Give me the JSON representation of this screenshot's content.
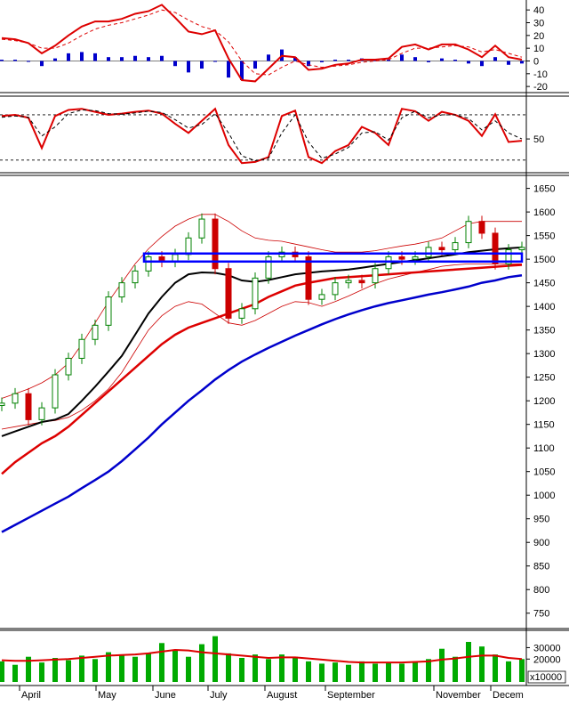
{
  "colors": {
    "background": "#ffffff",
    "panel_border": "#000000",
    "candle_up": "#008000",
    "candle_down": "#cc0000",
    "ma_black": "#000000",
    "ma_red": "#dd0000",
    "ma_blue": "#0000cc",
    "bollinger": "#cc0000",
    "highlight_box": "#0000ff",
    "macd_hist": "#0000cc",
    "volume_bar": "#00aa00",
    "volume_ma": "#dd0000"
  },
  "x_axis": {
    "months": [
      "April",
      "May",
      "June",
      "July",
      "August",
      "September",
      "November",
      "Decem"
    ]
  },
  "chart_data": [
    {
      "type": "line",
      "panel": "macd",
      "y_ticks": [
        40,
        30,
        20,
        10,
        0,
        -10,
        -20
      ],
      "ylim": [
        -22,
        45
      ],
      "x": [
        0,
        15,
        30,
        45,
        60,
        75,
        90,
        105,
        120,
        135,
        150,
        165,
        180,
        195,
        210,
        225,
        240,
        255,
        270,
        285,
        300,
        315,
        330,
        345,
        360,
        375,
        390,
        405,
        420,
        435,
        450,
        465,
        480,
        495,
        510,
        525,
        540,
        555,
        570,
        585
      ],
      "series": [
        {
          "values": [
            18,
            17,
            14,
            6,
            12,
            20,
            27,
            31,
            31,
            33,
            37,
            39,
            44,
            34,
            23,
            21,
            24,
            2,
            -15,
            -16,
            -6,
            4,
            3,
            -7,
            -6,
            -3,
            -2,
            1,
            1,
            2,
            11,
            13,
            9,
            13,
            13,
            9,
            3,
            12,
            3,
            1
          ]
        },
        {
          "values": [
            17,
            16,
            14,
            10,
            10,
            14,
            20,
            25,
            28,
            30,
            33,
            36,
            40,
            38,
            32,
            27,
            24,
            15,
            0,
            -10,
            -11,
            -5,
            0,
            -3,
            -5,
            -4,
            -3,
            -1,
            0,
            1,
            6,
            10,
            10,
            11,
            12,
            11,
            7,
            9,
            6,
            3
          ]
        }
      ],
      "histogram": [
        1,
        1,
        0,
        -4,
        2,
        6,
        7,
        6,
        3,
        3,
        4,
        3,
        4,
        -4,
        -9,
        -6,
        0,
        -13,
        -15,
        -6,
        5,
        9,
        3,
        -4,
        -1,
        1,
        1,
        2,
        1,
        1,
        5,
        3,
        -1,
        2,
        1,
        -2,
        -4,
        3,
        -3,
        -2
      ]
    },
    {
      "type": "line",
      "panel": "oscillator",
      "y_ticks": [
        50
      ],
      "ylim": [
        0,
        115
      ],
      "reference_lines": [
        90,
        15
      ],
      "x": [
        0,
        15,
        30,
        45,
        60,
        75,
        90,
        105,
        120,
        135,
        150,
        165,
        180,
        195,
        210,
        225,
        240,
        255,
        270,
        285,
        300,
        315,
        330,
        345,
        360,
        375,
        390,
        405,
        420,
        435,
        450,
        465,
        480,
        495,
        510,
        525,
        540,
        555,
        570,
        585
      ],
      "series": [
        {
          "values": [
            88,
            90,
            85,
            35,
            88,
            98,
            100,
            95,
            90,
            92,
            95,
            97,
            92,
            75,
            60,
            80,
            100,
            40,
            10,
            12,
            20,
            88,
            97,
            20,
            10,
            30,
            40,
            70,
            60,
            40,
            100,
            96,
            80,
            95,
            90,
            80,
            55,
            91,
            45,
            47
          ]
        },
        {
          "values": [
            86,
            88,
            86,
            55,
            70,
            92,
            98,
            97,
            92,
            91,
            93,
            96,
            94,
            82,
            68,
            74,
            92,
            60,
            22,
            14,
            18,
            60,
            90,
            45,
            18,
            25,
            36,
            60,
            62,
            48,
            85,
            96,
            85,
            90,
            90,
            84,
            65,
            80,
            60,
            50
          ]
        }
      ]
    },
    {
      "type": "candlestick",
      "panel": "price",
      "y_ticks": [
        1650,
        1600,
        1550,
        1500,
        1450,
        1400,
        1350,
        1300,
        1250,
        1200,
        1150,
        1100,
        1050,
        1000,
        950,
        900,
        850,
        800,
        750
      ],
      "ylim": [
        725,
        1670
      ],
      "x": [
        0,
        15,
        30,
        45,
        60,
        75,
        90,
        105,
        120,
        135,
        150,
        165,
        180,
        195,
        210,
        225,
        240,
        255,
        270,
        285,
        300,
        315,
        330,
        345,
        360,
        375,
        390,
        405,
        420,
        435,
        450,
        465,
        480,
        495,
        510,
        525,
        540,
        555,
        570,
        585
      ],
      "close": [
        1195,
        1215,
        1160,
        1185,
        1255,
        1290,
        1330,
        1360,
        1420,
        1450,
        1475,
        1505,
        1495,
        1510,
        1545,
        1585,
        1480,
        1375,
        1395,
        1460,
        1505,
        1515,
        1505,
        1415,
        1425,
        1450,
        1455,
        1450,
        1480,
        1505,
        1500,
        1505,
        1525,
        1520,
        1535,
        1580,
        1555,
        1490,
        1520,
        1525
      ],
      "ma_black": [
        1125,
        1135,
        1145,
        1155,
        1160,
        1172,
        1200,
        1230,
        1262,
        1295,
        1340,
        1385,
        1420,
        1450,
        1468,
        1472,
        1471,
        1466,
        1455,
        1452,
        1456,
        1462,
        1468,
        1471,
        1474,
        1476,
        1478,
        1482,
        1486,
        1490,
        1494,
        1498,
        1502,
        1506,
        1510,
        1515,
        1518,
        1521,
        1523,
        1525
      ],
      "ma_red": [
        1045,
        1070,
        1090,
        1110,
        1125,
        1145,
        1170,
        1195,
        1220,
        1245,
        1270,
        1295,
        1320,
        1340,
        1355,
        1365,
        1375,
        1385,
        1395,
        1405,
        1420,
        1432,
        1444,
        1450,
        1455,
        1460,
        1462,
        1464,
        1466,
        1468,
        1470,
        1472,
        1474,
        1476,
        1478,
        1480,
        1482,
        1484,
        1486,
        1488
      ],
      "ma_blue": [
        922,
        937,
        952,
        967,
        982,
        997,
        1015,
        1032,
        1050,
        1072,
        1097,
        1122,
        1150,
        1175,
        1200,
        1222,
        1245,
        1265,
        1283,
        1298,
        1312,
        1325,
        1338,
        1350,
        1362,
        1373,
        1383,
        1392,
        1400,
        1407,
        1413,
        1419,
        1425,
        1430,
        1436,
        1442,
        1450,
        1455,
        1462,
        1466
      ],
      "bb_upper": [
        1205,
        1215,
        1225,
        1238,
        1255,
        1280,
        1320,
        1365,
        1410,
        1450,
        1490,
        1522,
        1548,
        1570,
        1585,
        1595,
        1595,
        1580,
        1560,
        1545,
        1540,
        1538,
        1532,
        1526,
        1520,
        1515,
        1515,
        1515,
        1518,
        1523,
        1528,
        1532,
        1538,
        1545,
        1560,
        1575,
        1580,
        1580,
        1580,
        1580
      ],
      "bb_lower": [
        1140,
        1145,
        1150,
        1155,
        1158,
        1165,
        1180,
        1200,
        1225,
        1260,
        1305,
        1350,
        1380,
        1400,
        1410,
        1405,
        1385,
        1365,
        1360,
        1370,
        1385,
        1400,
        1410,
        1408,
        1400,
        1410,
        1422,
        1435,
        1448,
        1458,
        1465,
        1472,
        1478,
        1485,
        1488,
        1490,
        1490,
        1490,
        1490,
        1490
      ],
      "highlight_range": [
        1495,
        1512
      ],
      "highlight_x_range": [
        160,
        585
      ]
    },
    {
      "type": "bar",
      "panel": "volume",
      "y_ticks": [
        30000,
        20000
      ],
      "unit_label": "x10000",
      "ylim": [
        0,
        42000
      ],
      "x": [
        0,
        15,
        30,
        45,
        60,
        75,
        90,
        105,
        120,
        135,
        150,
        165,
        180,
        195,
        210,
        225,
        240,
        255,
        270,
        285,
        300,
        315,
        330,
        345,
        360,
        375,
        390,
        405,
        420,
        435,
        450,
        465,
        480,
        495,
        510,
        525,
        540,
        555,
        570,
        585
      ],
      "values": [
        18000,
        15000,
        22000,
        17000,
        21000,
        19000,
        23000,
        20000,
        26000,
        24000,
        22000,
        25000,
        34000,
        28000,
        22000,
        33000,
        40000,
        25000,
        21000,
        24000,
        20000,
        24000,
        22000,
        18000,
        16000,
        17000,
        15000,
        18000,
        16000,
        17000,
        16000,
        18000,
        20000,
        29000,
        22000,
        35000,
        31000,
        24000,
        18000,
        20000
      ],
      "ma": [
        19000,
        18500,
        18500,
        19000,
        19500,
        20000,
        21000,
        22000,
        23000,
        23500,
        24000,
        25000,
        26500,
        28000,
        27500,
        26000,
        25000,
        24000,
        23000,
        22000,
        21000,
        21500,
        21500,
        20500,
        19500,
        18500,
        17500,
        17000,
        17000,
        17000,
        17000,
        17500,
        18000,
        19500,
        20500,
        22000,
        23000,
        23000,
        21000,
        20000
      ]
    }
  ]
}
